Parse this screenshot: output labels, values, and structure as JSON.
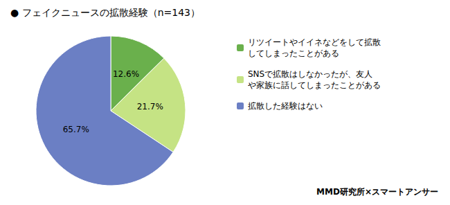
{
  "chart_data": {
    "type": "pie",
    "title": "● フェイクニュースの拡散経験（n=143）",
    "categories": [
      "リツイートやイイネなどをして拡散\nしてしまったことがある",
      "SNSで拡散はしなかったが、友人\nや家族に話してしまったことがある",
      "拡散した経験はない"
    ],
    "values": [
      12.6,
      21.7,
      65.7
    ],
    "value_labels": [
      "12.6%",
      "21.7%",
      "65.7%"
    ],
    "colors": [
      "#6ab04c",
      "#c5e384",
      "#6b7fc4"
    ],
    "data_labels": true,
    "legend": "right",
    "annotations": [
      "MMD研究所×スマートアンサー"
    ]
  }
}
